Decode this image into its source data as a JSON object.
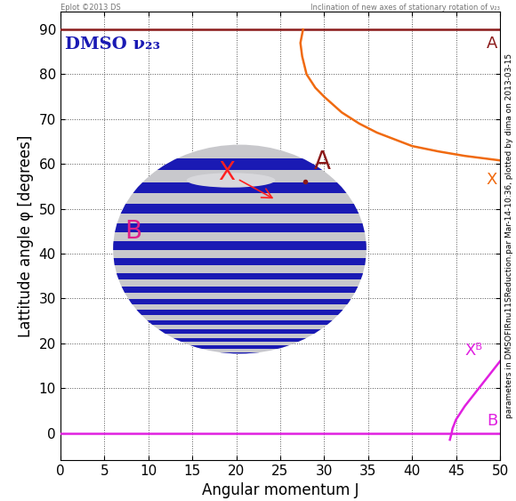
{
  "chart_data": {
    "type": "line",
    "title": "Inclination of new axes of stationary rotation of ν₂₃",
    "annotations": [
      "Eplot ©2013 DS",
      "DMSO ν₂₃",
      "parameters in DMSOFIRnu11SReduction.par Mar-14-10:36, plotted by dima on 2013-03-15"
    ],
    "x_label": "Angular momentum J",
    "y_label": "Lattitude angle φ [degrees]",
    "xlim": [
      0,
      50
    ],
    "ylim": [
      -6,
      94
    ],
    "xticks": [
      0,
      5,
      10,
      15,
      20,
      25,
      30,
      35,
      40,
      45,
      50
    ],
    "yticks": [
      0,
      10,
      20,
      30,
      40,
      50,
      60,
      70,
      80,
      90
    ],
    "grid": true,
    "series": [
      {
        "name": "A",
        "color": "#8b1a1a",
        "x": [
          0,
          50
        ],
        "values": [
          90,
          90
        ]
      },
      {
        "name": "X",
        "color": "#f06a10",
        "x": [
          27.6,
          27.3,
          27.5,
          28,
          29,
          30,
          32,
          34,
          36,
          38,
          40,
          43,
          46,
          50
        ],
        "values": [
          90,
          87,
          84,
          80,
          77,
          75,
          71.5,
          69,
          67,
          65.5,
          64,
          62.8,
          61.8,
          60.8
        ]
      },
      {
        "name": "Xᴮ",
        "color": "#e020e0",
        "x": [
          44.3,
          44.5,
          44.6,
          45,
          46,
          47,
          48,
          49,
          50
        ],
        "values": [
          -1.5,
          0,
          1,
          3,
          6,
          8.5,
          11,
          13.5,
          16
        ]
      },
      {
        "name": "B",
        "color": "#e020e0",
        "x": [
          0,
          50
        ],
        "values": [
          0,
          0
        ]
      }
    ],
    "inset_labels": [
      {
        "text": "X",
        "color": "#ff2020"
      },
      {
        "text": "A",
        "color": "#8b1a1a"
      },
      {
        "text": "B",
        "color": "#e0208a"
      }
    ]
  }
}
